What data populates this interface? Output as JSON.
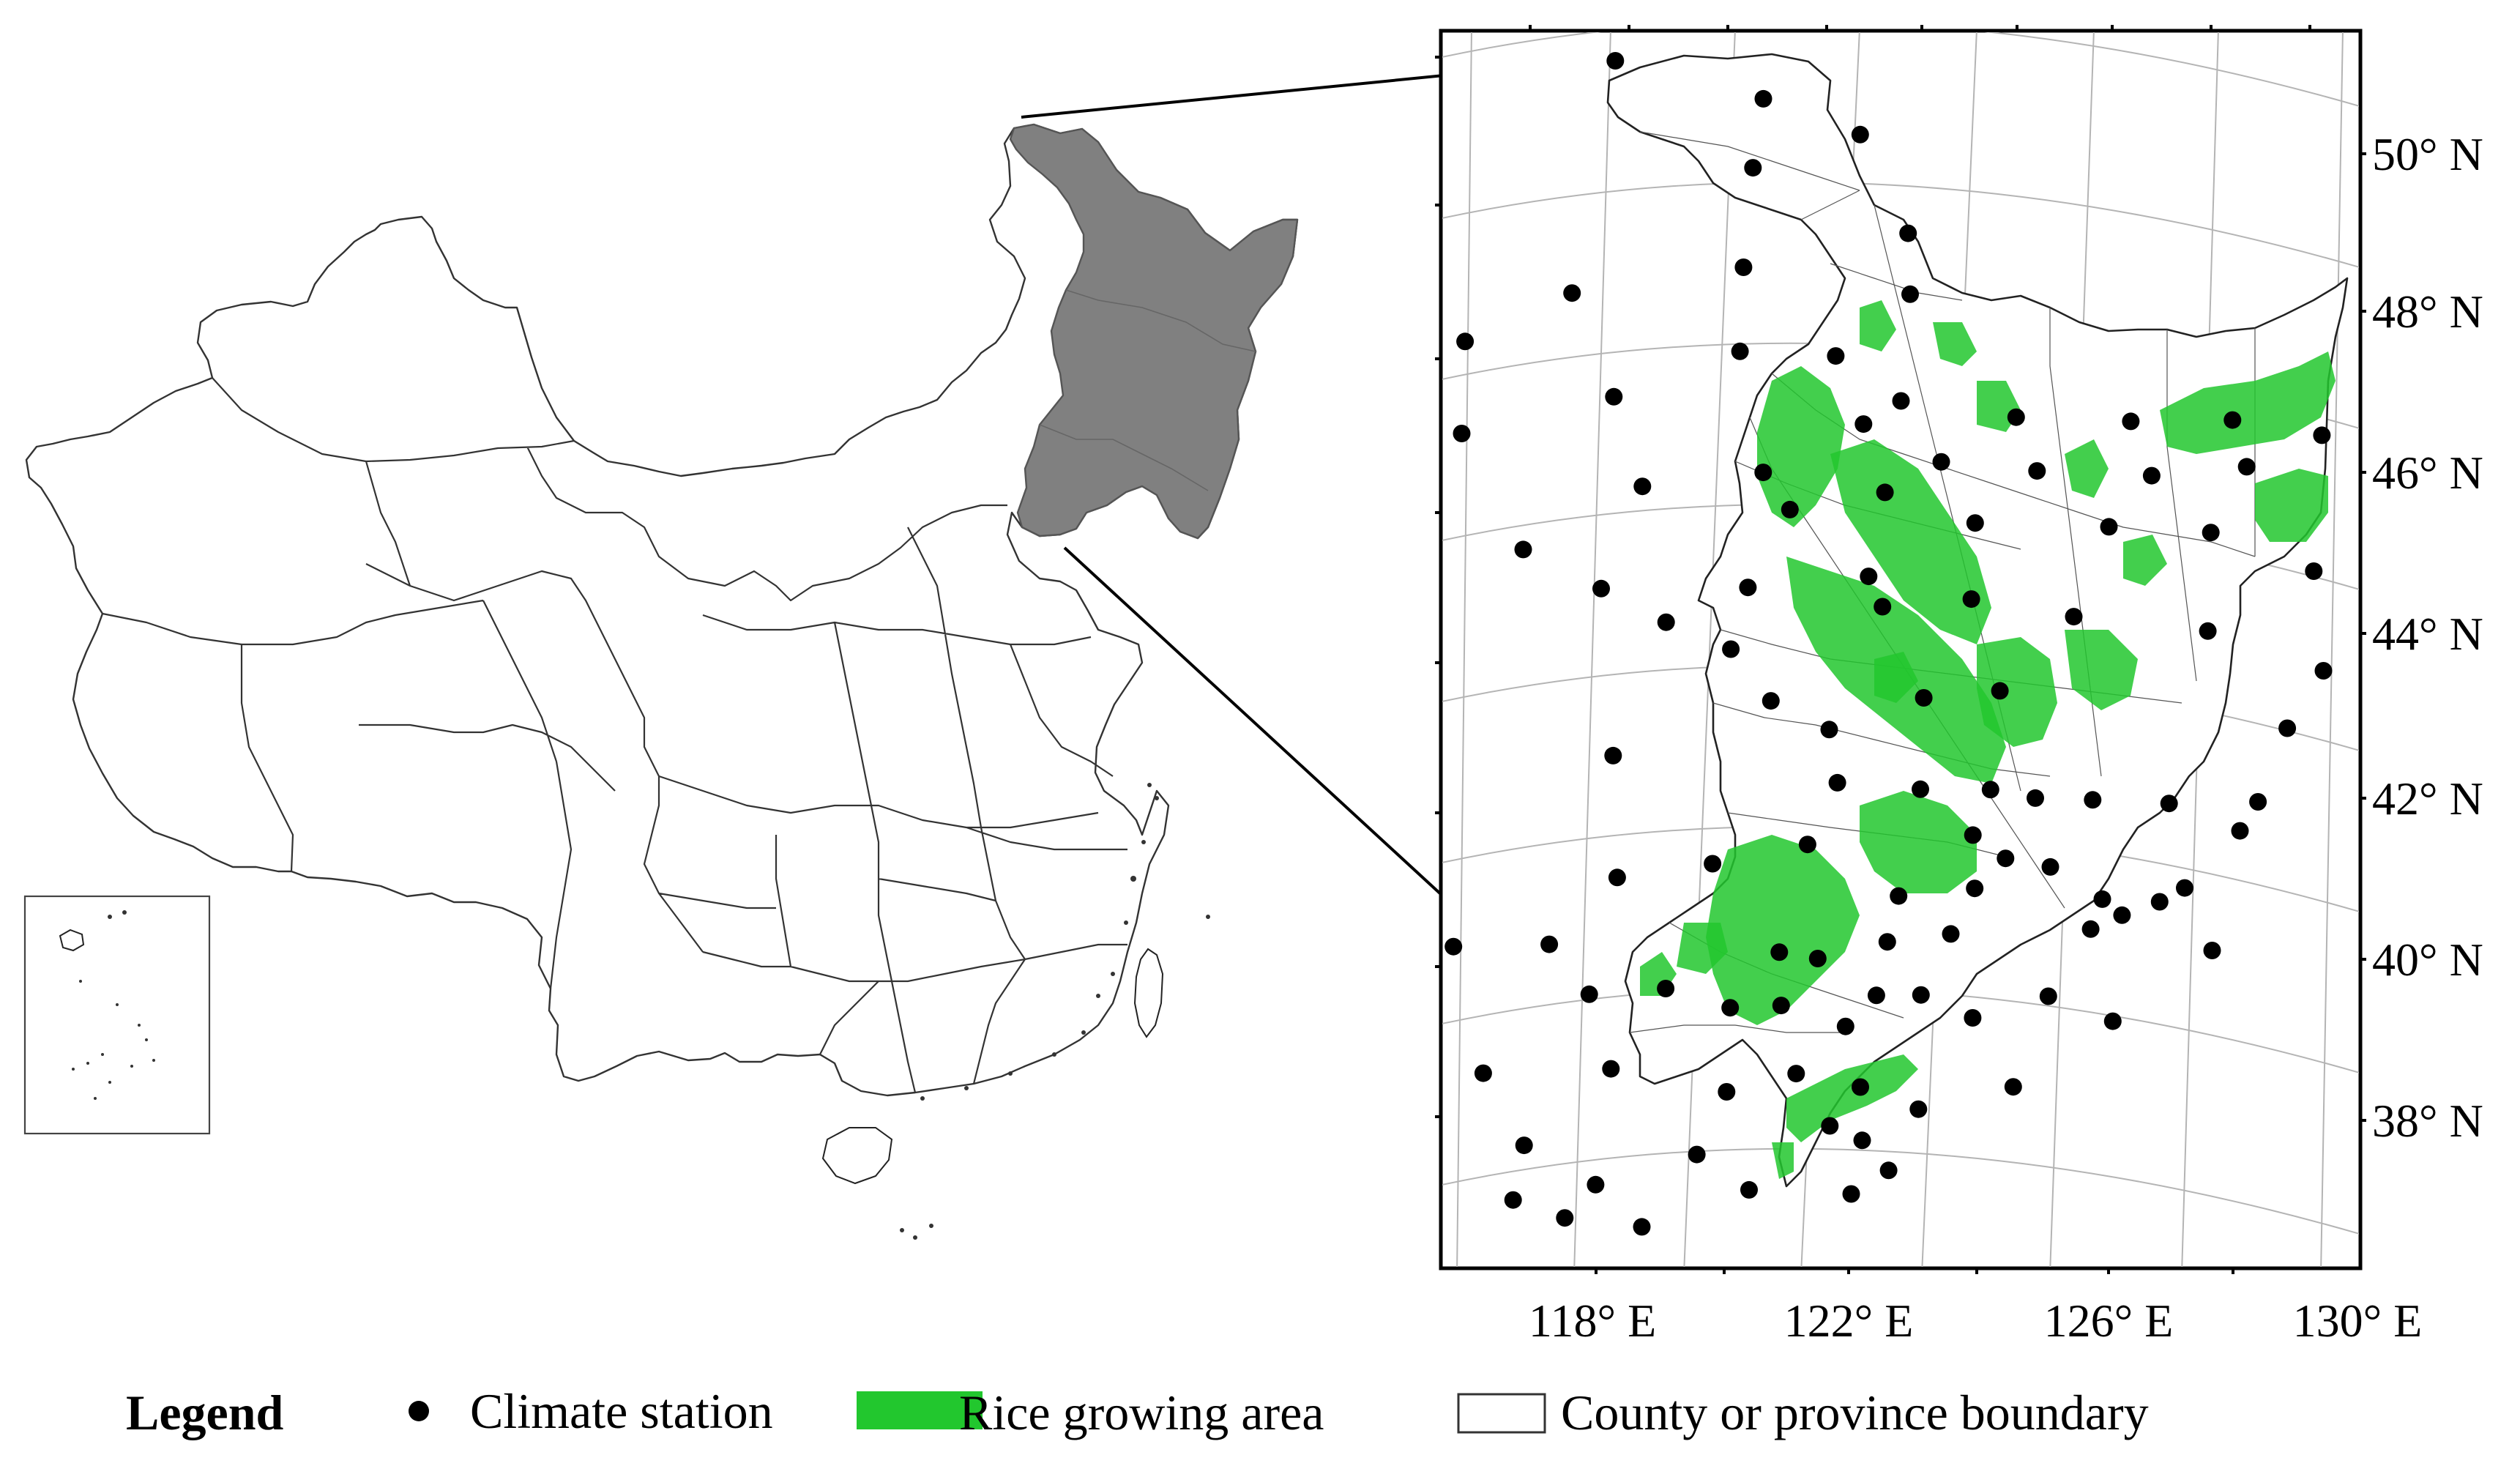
{
  "latitude_labels": [
    "50° N",
    "48° N",
    "46° N",
    "44° N",
    "42° N",
    "40° N",
    "38° N"
  ],
  "longitude_labels": [
    "118° E",
    "122° E",
    "126° E",
    "130° E"
  ],
  "legend": {
    "title": "Legend",
    "items": [
      {
        "label": "Climate station",
        "symbol": "black-dot"
      },
      {
        "label": "Rice growing area",
        "symbol": "green-fill"
      },
      {
        "label": "County or province boundary",
        "symbol": "outline-box"
      }
    ]
  },
  "colors": {
    "highlight_region": "#808080",
    "rice": "#22c72e",
    "station": "#000000",
    "graticule": "#b4b4b4"
  },
  "climate_stations": [
    {
      "lon": 118.9,
      "lat": 52.0
    },
    {
      "lon": 121.2,
      "lat": 51.4
    },
    {
      "lon": 122.7,
      "lat": 50.9
    },
    {
      "lon": 121.0,
      "lat": 50.5
    },
    {
      "lon": 123.4,
      "lat": 49.6
    },
    {
      "lon": 120.8,
      "lat": 49.2
    },
    {
      "lon": 118.1,
      "lat": 49.0
    },
    {
      "lon": 116.4,
      "lat": 48.5
    },
    {
      "lon": 123.4,
      "lat": 48.8
    },
    {
      "lon": 114.2,
      "lat": 47.5
    },
    {
      "lon": 116.3,
      "lat": 47.3
    },
    {
      "lon": 118.7,
      "lat": 47.6
    },
    {
      "lon": 120.7,
      "lat": 48.1
    },
    {
      "lon": 122.2,
      "lat": 48.0
    },
    {
      "lon": 119.1,
      "lat": 46.4
    },
    {
      "lon": 114.9,
      "lat": 46.4
    },
    {
      "lon": 122.6,
      "lat": 47.1
    },
    {
      "lon": 123.2,
      "lat": 47.4
    },
    {
      "lon": 125.0,
      "lat": 47.2
    },
    {
      "lon": 126.8,
      "lat": 47.2
    },
    {
      "lon": 128.4,
      "lat": 47.3
    },
    {
      "lon": 129.8,
      "lat": 47.2
    },
    {
      "lon": 121.0,
      "lat": 46.5
    },
    {
      "lon": 121.4,
      "lat": 46.0
    },
    {
      "lon": 122.9,
      "lat": 46.2
    },
    {
      "lon": 123.8,
      "lat": 46.6
    },
    {
      "lon": 125.3,
      "lat": 46.5
    },
    {
      "lon": 127.1,
      "lat": 46.5
    },
    {
      "lon": 128.6,
      "lat": 46.7
    },
    {
      "lon": 130.6,
      "lat": 46.3
    },
    {
      "lon": 130.9,
      "lat": 46.8
    },
    {
      "lon": 117.2,
      "lat": 45.7
    },
    {
      "lon": 118.4,
      "lat": 45.1
    },
    {
      "lon": 120.7,
      "lat": 45.0
    },
    {
      "lon": 122.6,
      "lat": 45.1
    },
    {
      "lon": 124.3,
      "lat": 45.8
    },
    {
      "lon": 126.4,
      "lat": 45.8
    },
    {
      "lon": 128.0,
      "lat": 45.8
    },
    {
      "lon": 129.6,
      "lat": 45.4
    },
    {
      "lon": 119.4,
      "lat": 44.6
    },
    {
      "lon": 120.4,
      "lat": 44.2
    },
    {
      "lon": 122.8,
      "lat": 44.7
    },
    {
      "lon": 124.2,
      "lat": 44.8
    },
    {
      "lon": 125.8,
      "lat": 44.6
    },
    {
      "lon": 127.9,
      "lat": 44.5
    },
    {
      "lon": 129.7,
      "lat": 44.1
    },
    {
      "lon": 113.6,
      "lat": 43.9
    },
    {
      "lon": 121.0,
      "lat": 43.5
    },
    {
      "lon": 121.9,
      "lat": 43.1
    },
    {
      "lon": 123.4,
      "lat": 43.5
    },
    {
      "lon": 124.6,
      "lat": 43.6
    },
    {
      "lon": 129.1,
      "lat": 43.3
    },
    {
      "lon": 118.5,
      "lat": 42.9
    },
    {
      "lon": 122.0,
      "lat": 42.4
    },
    {
      "lon": 123.3,
      "lat": 42.3
    },
    {
      "lon": 124.4,
      "lat": 42.3
    },
    {
      "lon": 125.1,
      "lat": 42.2
    },
    {
      "lon": 126.0,
      "lat": 42.2
    },
    {
      "lon": 127.2,
      "lat": 42.2
    },
    {
      "lon": 128.6,
      "lat": 42.3
    },
    {
      "lon": 118.5,
      "lat": 41.3
    },
    {
      "lon": 120.0,
      "lat": 41.4
    },
    {
      "lon": 121.5,
      "lat": 41.6
    },
    {
      "lon": 124.1,
      "lat": 41.7
    },
    {
      "lon": 124.6,
      "lat": 41.4
    },
    {
      "lon": 125.3,
      "lat": 41.3
    },
    {
      "lon": 128.3,
      "lat": 41.9
    },
    {
      "lon": 115.9,
      "lat": 40.6
    },
    {
      "lon": 122.9,
      "lat": 40.9
    },
    {
      "lon": 124.1,
      "lat": 41.0
    },
    {
      "lon": 126.1,
      "lat": 40.9
    },
    {
      "lon": 127.0,
      "lat": 40.9
    },
    {
      "lon": 127.4,
      "lat": 41.1
    },
    {
      "lon": 117.4,
      "lat": 40.5
    },
    {
      "lon": 118.0,
      "lat": 39.8
    },
    {
      "lon": 119.2,
      "lat": 39.8
    },
    {
      "lon": 121.0,
      "lat": 40.2
    },
    {
      "lon": 121.6,
      "lat": 40.1
    },
    {
      "lon": 122.7,
      "lat": 40.3
    },
    {
      "lon": 123.7,
      "lat": 40.4
    },
    {
      "lon": 125.9,
      "lat": 40.5
    },
    {
      "lon": 126.4,
      "lat": 40.7
    },
    {
      "lon": 127.8,
      "lat": 40.3
    },
    {
      "lon": 120.2,
      "lat": 39.5
    },
    {
      "lon": 121.0,
      "lat": 39.5
    },
    {
      "lon": 122.0,
      "lat": 39.2
    },
    {
      "lon": 122.5,
      "lat": 39.6
    },
    {
      "lon": 123.2,
      "lat": 39.6
    },
    {
      "lon": 124.0,
      "lat": 39.3
    },
    {
      "lon": 125.2,
      "lat": 39.6
    },
    {
      "lon": 126.2,
      "lat": 39.3
    },
    {
      "lon": 116.3,
      "lat": 38.9
    },
    {
      "lon": 118.3,
      "lat": 38.8
    },
    {
      "lon": 120.1,
      "lat": 38.4
    },
    {
      "lon": 121.2,
      "lat": 38.6
    },
    {
      "lon": 122.2,
      "lat": 38.4
    },
    {
      "lon": 123.1,
      "lat": 38.1
    },
    {
      "lon": 124.6,
      "lat": 38.4
    },
    {
      "lon": 116.9,
      "lat": 37.9
    },
    {
      "lon": 118.0,
      "lat": 37.3
    },
    {
      "lon": 119.6,
      "lat": 37.6
    },
    {
      "lon": 121.7,
      "lat": 37.9
    },
    {
      "lon": 122.2,
      "lat": 37.7
    },
    {
      "lon": 122.6,
      "lat": 37.3
    },
    {
      "lon": 120.4,
      "lat": 37.1
    },
    {
      "lon": 116.7,
      "lat": 37.2
    },
    {
      "lon": 117.5,
      "lat": 36.9
    },
    {
      "lon": 118.7,
      "lat": 36.7
    },
    {
      "lon": 122.0,
      "lat": 37.0
    }
  ]
}
